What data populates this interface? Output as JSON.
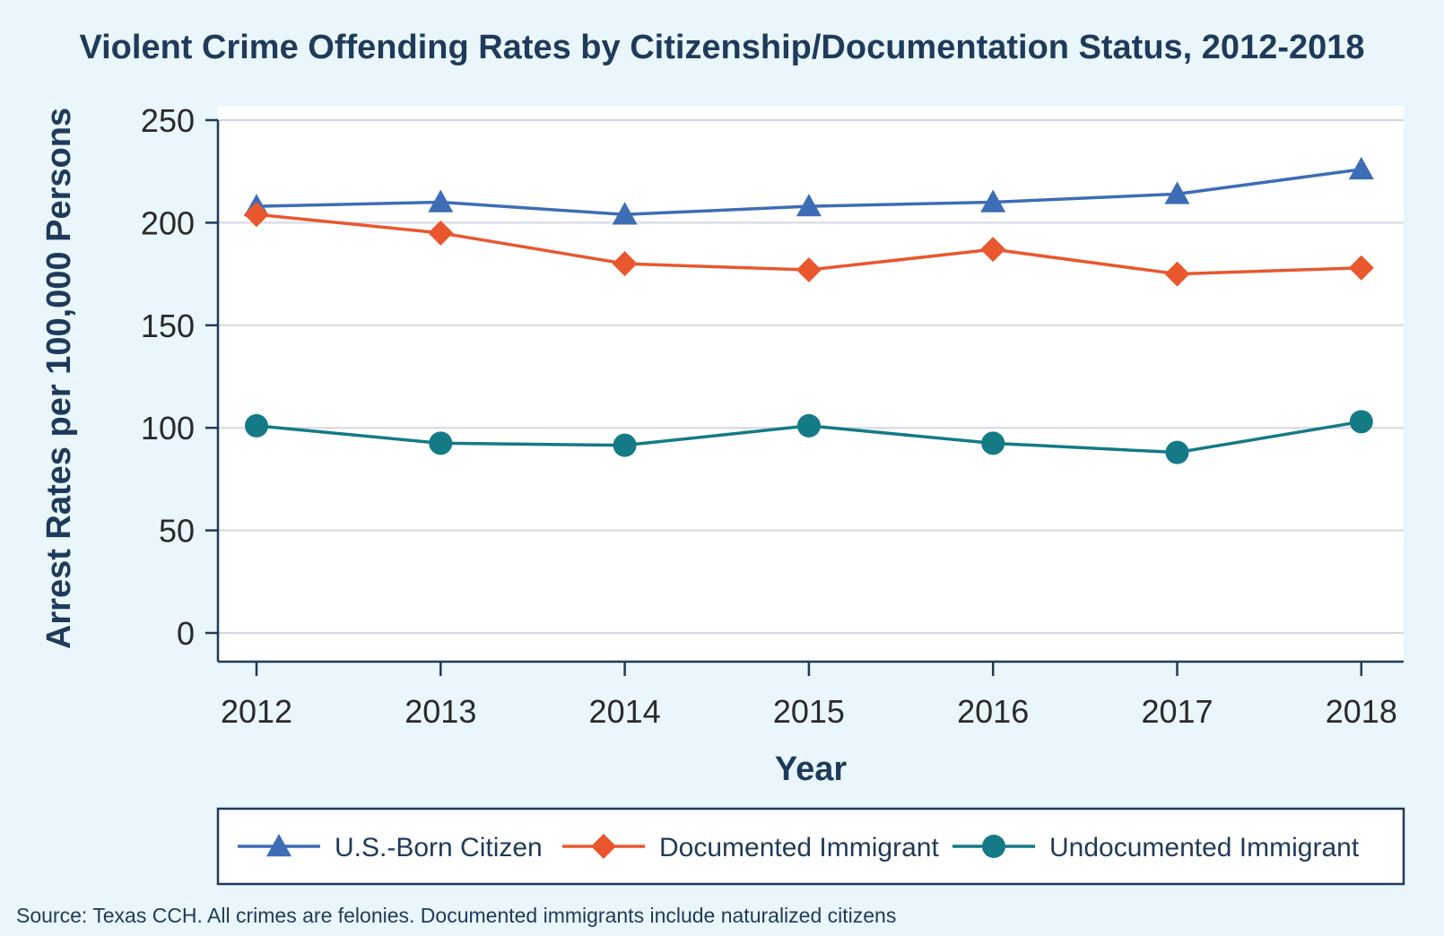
{
  "chart_data": {
    "type": "line",
    "title": "Violent Crime Offending Rates by Citizenship/Documentation Status, 2012-2018",
    "xlabel": "Year",
    "ylabel": "Arrest Rates per 100,000 Persons",
    "x": [
      "2012",
      "2013",
      "2014",
      "2015",
      "2016",
      "2017",
      "2018"
    ],
    "yticks": [
      "0",
      "50",
      "100",
      "150",
      "200",
      "250"
    ],
    "ylim": [
      0,
      250
    ],
    "grid": true,
    "legend_position": "bottom",
    "series": [
      {
        "name": "U.S.-Born Citizen",
        "values": [
          208,
          210,
          204,
          208,
          210,
          214,
          226
        ],
        "color": "#3d6db5",
        "marker": "triangle"
      },
      {
        "name": "Documented Immigrant",
        "values": [
          204,
          195,
          180,
          177,
          187,
          175,
          178
        ],
        "color": "#e8572e",
        "marker": "diamond"
      },
      {
        "name": "Undocumented Immigrant",
        "values": [
          101,
          92.5,
          91.5,
          101,
          92.5,
          88,
          103
        ],
        "color": "#137a86",
        "marker": "circle"
      }
    ],
    "source": "Source: Texas CCH. All crimes are felonies. Documented immigrants include naturalized citizens"
  },
  "colors": {
    "background": "#e9f6fc",
    "plot_background": "#ffffff",
    "text": "#1f3a5a",
    "gridline": "#d3d8e0"
  }
}
